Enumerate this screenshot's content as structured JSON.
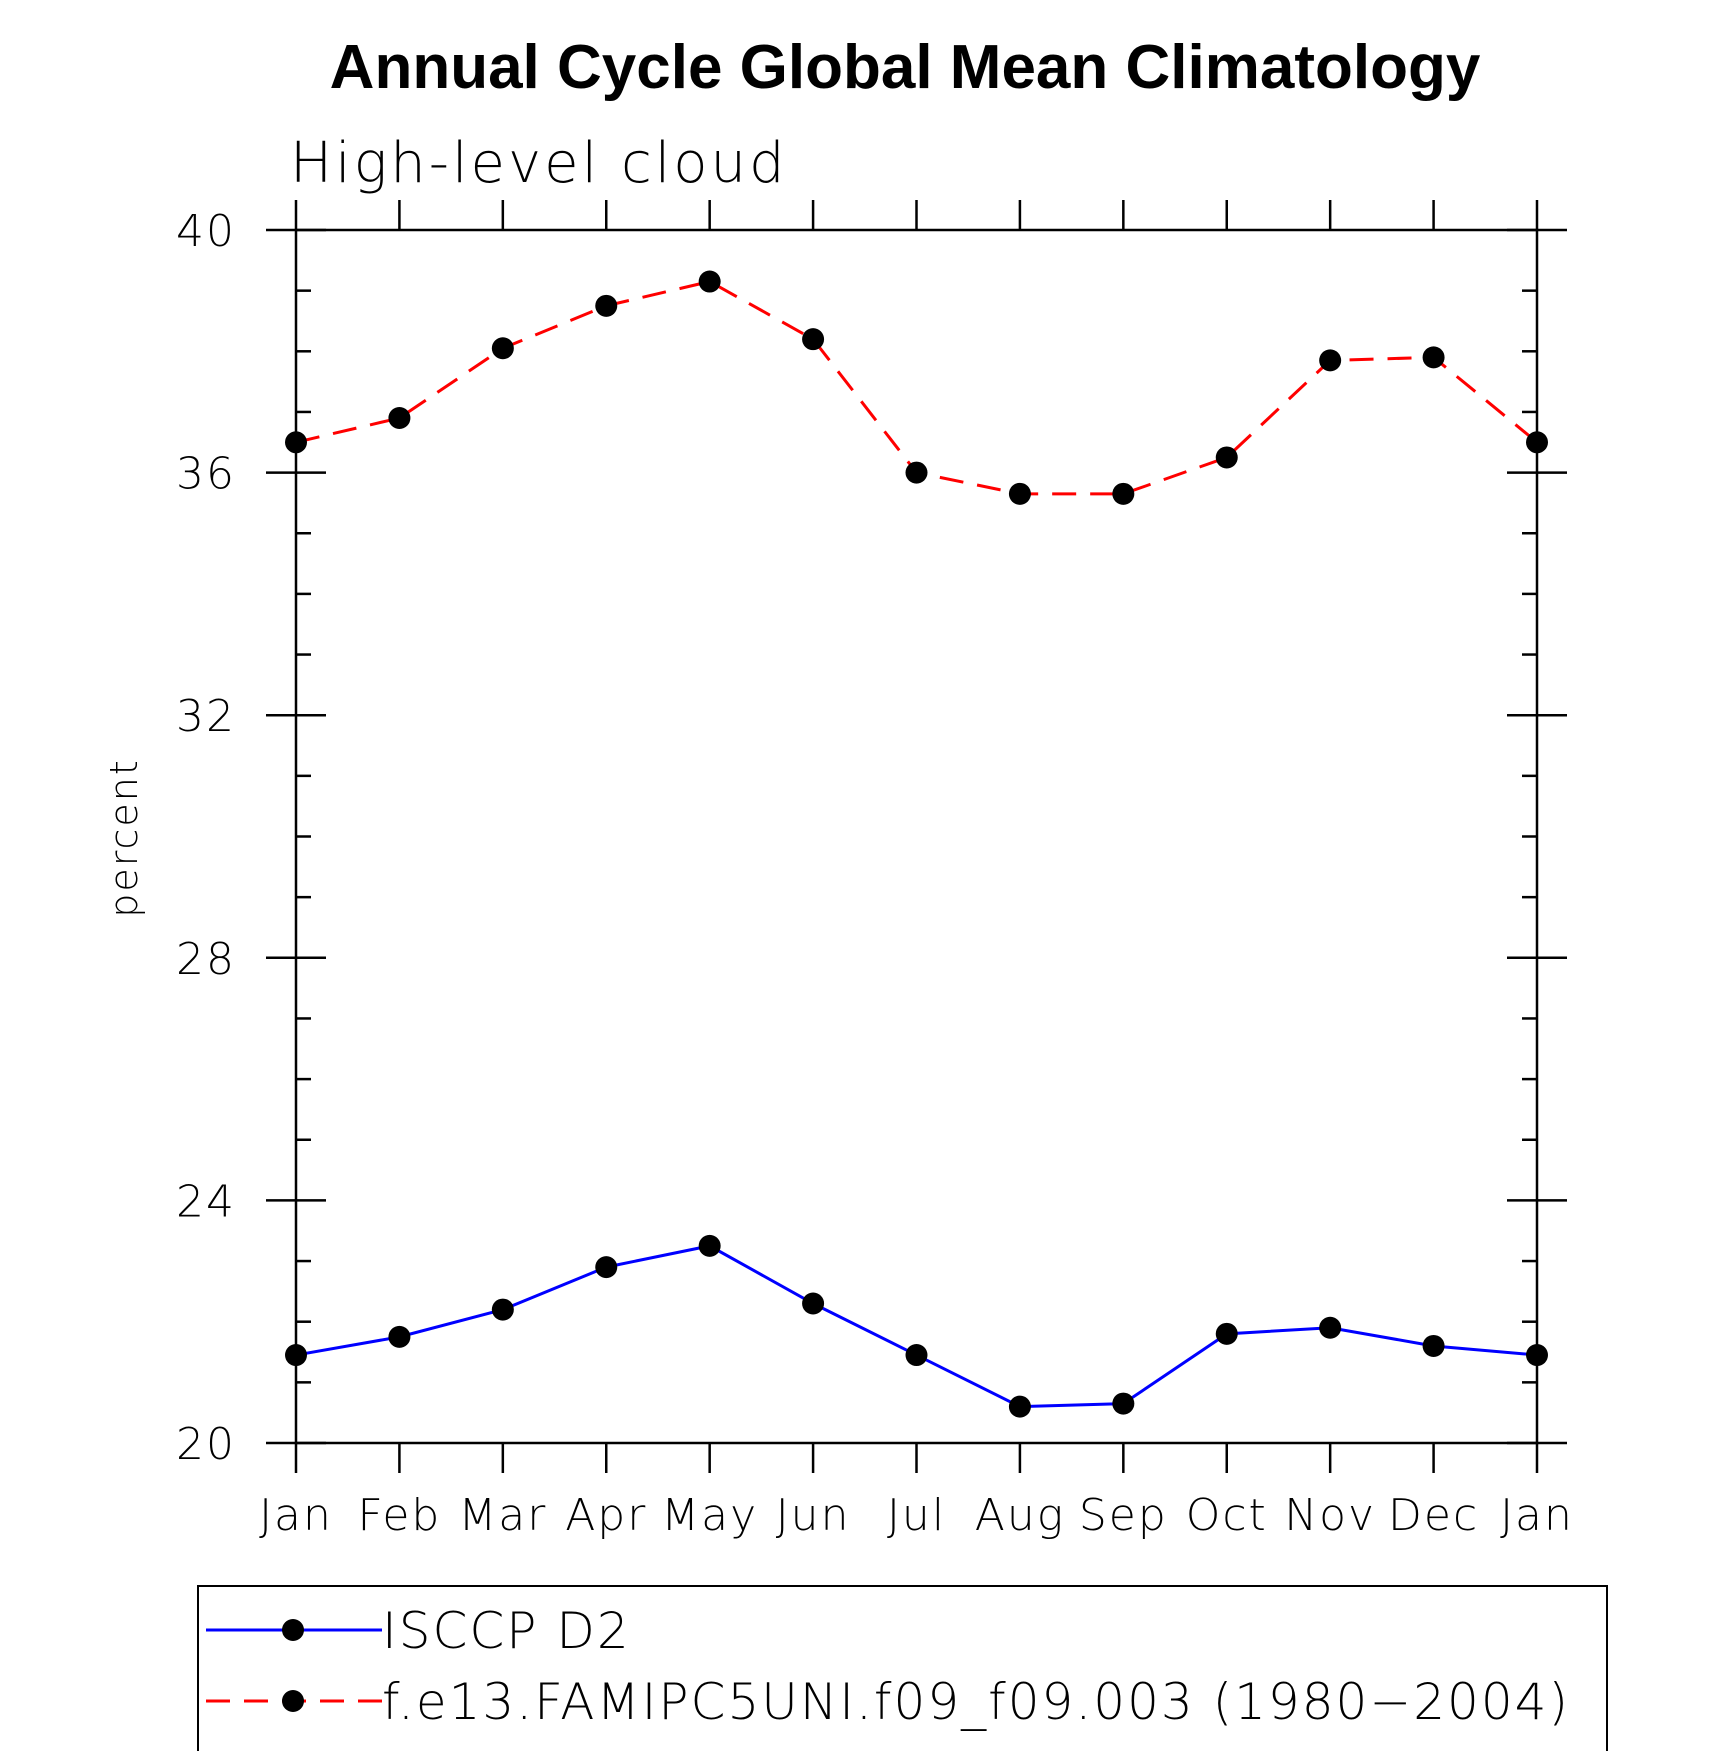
{
  "chart_data": {
    "type": "line",
    "title": "Annual Cycle Global Mean Climatology",
    "subtitle": "High-level cloud",
    "xlabel": "",
    "ylabel": "percent",
    "categories": [
      "Jan",
      "Feb",
      "Mar",
      "Apr",
      "May",
      "Jun",
      "Jul",
      "Aug",
      "Sep",
      "Oct",
      "Nov",
      "Dec",
      "Jan"
    ],
    "ylim": [
      20,
      40
    ],
    "yticks": [
      "20",
      "24",
      "28",
      "32",
      "36",
      "40"
    ],
    "grid": false,
    "legend_position": "bottom",
    "series": [
      {
        "name": "ISCCP D2",
        "color": "#0000ff",
        "line_style": "solid",
        "marker": "filled-circle",
        "values": [
          21.45,
          21.75,
          22.2,
          22.9,
          23.25,
          22.3,
          21.45,
          20.6,
          20.65,
          21.8,
          21.9,
          21.6,
          21.45
        ]
      },
      {
        "name": "f.e13.FAMIPC5UNI.f09_f09.003 (1980−2004)",
        "color": "#ff0000",
        "line_style": "dashed",
        "marker": "filled-circle",
        "values": [
          36.5,
          36.9,
          38.05,
          38.75,
          39.15,
          38.2,
          36.0,
          35.65,
          35.65,
          36.25,
          37.85,
          37.9,
          36.5
        ]
      }
    ]
  }
}
